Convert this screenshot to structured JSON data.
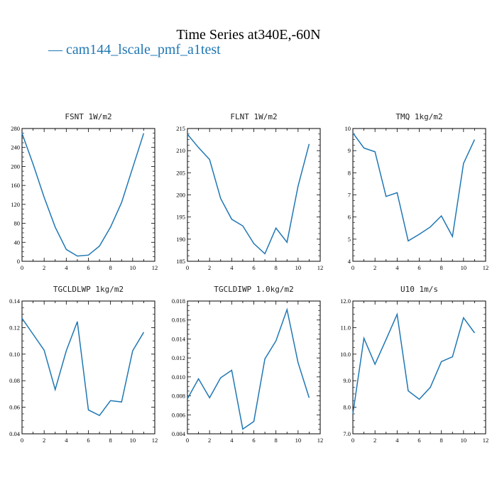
{
  "figure": {
    "title": "Time Series at340E,-60N",
    "legend_label": "— cam144_lscale_pmf_a1test",
    "line_color": "#1f77b4",
    "axis_color": "#000000"
  },
  "chart_data": [
    {
      "type": "line",
      "title": "FSNT   1W/m2",
      "x": [
        0,
        1,
        2,
        3,
        4,
        5,
        6,
        7,
        8,
        9,
        10,
        11
      ],
      "series": [
        {
          "name": "cam144_lscale_pmf_a1test",
          "values": [
            270,
            205,
            135,
            72,
            25,
            11,
            13,
            32,
            72,
            124,
            197,
            270
          ]
        }
      ],
      "xlim": [
        0,
        12
      ],
      "ylim": [
        0,
        280
      ],
      "xticks": [
        0,
        2,
        4,
        6,
        8,
        10,
        12
      ],
      "yticks": [
        0,
        40,
        80,
        120,
        160,
        200,
        240,
        280
      ],
      "ytick_labels": [
        "0",
        "40",
        "80",
        "120",
        "160",
        "200",
        "240",
        "280"
      ]
    },
    {
      "type": "line",
      "title": "FLNT   1W/m2",
      "x": [
        0,
        1,
        2,
        3,
        4,
        5,
        6,
        7,
        8,
        9,
        10,
        11
      ],
      "series": [
        {
          "name": "cam144_lscale_pmf_a1test",
          "values": [
            213.7,
            210.7,
            208.0,
            199.2,
            194.5,
            193.0,
            189.0,
            186.7,
            192.5,
            189.3,
            202.0,
            211.5
          ]
        }
      ],
      "xlim": [
        0,
        12
      ],
      "ylim": [
        185,
        215
      ],
      "xticks": [
        0,
        2,
        4,
        6,
        8,
        10,
        12
      ],
      "yticks": [
        185,
        190,
        195,
        200,
        205,
        210,
        215
      ],
      "ytick_labels": [
        "185",
        "190",
        "195",
        "200",
        "205",
        "210",
        "215"
      ]
    },
    {
      "type": "line",
      "title": "TMQ   1kg/m2",
      "x": [
        0,
        1,
        2,
        3,
        4,
        5,
        6,
        7,
        8,
        9,
        10,
        11
      ],
      "series": [
        {
          "name": "cam144_lscale_pmf_a1test",
          "values": [
            9.8,
            9.12,
            8.95,
            6.93,
            7.1,
            4.92,
            5.22,
            5.55,
            6.05,
            5.12,
            8.42,
            9.5
          ]
        }
      ],
      "xlim": [
        0,
        12
      ],
      "ylim": [
        4,
        10
      ],
      "xticks": [
        0,
        2,
        4,
        6,
        8,
        10,
        12
      ],
      "yticks": [
        4,
        5,
        6,
        7,
        8,
        9,
        10
      ],
      "ytick_labels": [
        "4",
        "5",
        "6",
        "7",
        "8",
        "9",
        "10"
      ]
    },
    {
      "type": "line",
      "title": "TGCLDLWP   1kg/m2",
      "x": [
        0,
        1,
        2,
        3,
        4,
        5,
        6,
        7,
        8,
        9,
        10,
        11
      ],
      "series": [
        {
          "name": "cam144_lscale_pmf_a1test",
          "values": [
            0.127,
            0.115,
            0.103,
            0.0733,
            0.1025,
            0.1245,
            0.058,
            0.0538,
            0.065,
            0.064,
            0.1025,
            0.1165
          ]
        }
      ],
      "xlim": [
        0,
        12
      ],
      "ylim": [
        0.04,
        0.14
      ],
      "xticks": [
        0,
        2,
        4,
        6,
        8,
        10,
        12
      ],
      "yticks": [
        0.04,
        0.06,
        0.08,
        0.1,
        0.12,
        0.14
      ],
      "ytick_labels": [
        "0.04",
        "0.06",
        "0.08",
        "0.10",
        "0.12",
        "0.14"
      ]
    },
    {
      "type": "line",
      "title": "TGCLDIWP   1.0kg/m2",
      "x": [
        0,
        1,
        2,
        3,
        4,
        5,
        6,
        7,
        8,
        9,
        10,
        11
      ],
      "series": [
        {
          "name": "cam144_lscale_pmf_a1test",
          "values": [
            0.0077,
            0.0098,
            0.0078,
            0.0099,
            0.0107,
            0.0045,
            0.0053,
            0.0119,
            0.0138,
            0.0171,
            0.0115,
            0.0078
          ]
        }
      ],
      "xlim": [
        0,
        12
      ],
      "ylim": [
        0.004,
        0.018
      ],
      "xticks": [
        0,
        2,
        4,
        6,
        8,
        10,
        12
      ],
      "yticks": [
        0.004,
        0.006,
        0.008,
        0.01,
        0.012,
        0.014,
        0.016,
        0.018
      ],
      "ytick_labels": [
        "0.004",
        "0.006",
        "0.008",
        "0.010",
        "0.012",
        "0.014",
        "0.016",
        "0.018"
      ]
    },
    {
      "type": "line",
      "title": "U10   1m/s",
      "x": [
        0,
        1,
        2,
        3,
        4,
        5,
        6,
        7,
        8,
        9,
        10,
        11
      ],
      "series": [
        {
          "name": "cam144_lscale_pmf_a1test",
          "values": [
            7.75,
            10.6,
            9.62,
            10.55,
            11.5,
            8.62,
            8.3,
            8.75,
            9.72,
            9.9,
            11.37,
            10.8
          ]
        }
      ],
      "xlim": [
        0,
        12
      ],
      "ylim": [
        7,
        12
      ],
      "xticks": [
        0,
        2,
        4,
        6,
        8,
        10,
        12
      ],
      "yticks": [
        7,
        8,
        9,
        10,
        11,
        12
      ],
      "ytick_labels": [
        "7.0",
        "8.0",
        "9.0",
        "10.0",
        "11.0",
        "12.0"
      ]
    }
  ]
}
